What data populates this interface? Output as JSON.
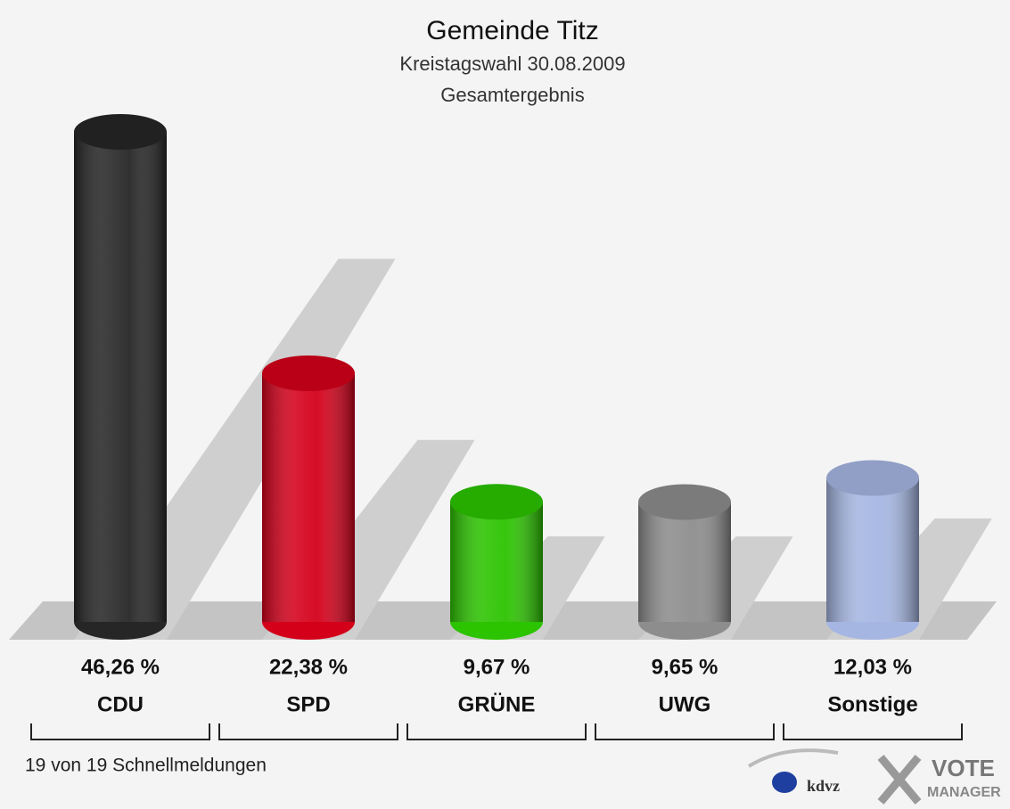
{
  "chart_data": {
    "type": "bar",
    "title": "Gemeinde Titz",
    "subtitle": "Kreistagswahl 30.08.2009",
    "subtitle2": "Gesamtergebnis",
    "categories": [
      "CDU",
      "SPD",
      "GRÜNE",
      "UWG",
      "Sonstige"
    ],
    "values": [
      46.26,
      22.38,
      9.67,
      9.65,
      12.03
    ],
    "value_labels": [
      "46,26 %",
      "22,38 %",
      "9,67 %",
      "9,65 %",
      "12,03 %"
    ],
    "colors": [
      "#262626",
      "#d4001a",
      "#2cc300",
      "#8d8d8d",
      "#a5b6e2"
    ],
    "footnote": "19 von 19 Schnellmeldungen",
    "logo_texts": [
      "kdvz",
      "VOTE",
      "MANAGER"
    ]
  }
}
